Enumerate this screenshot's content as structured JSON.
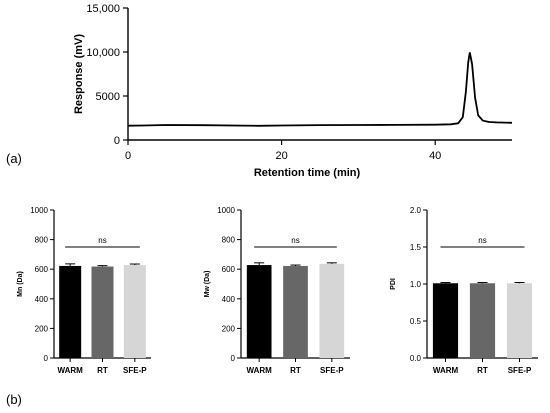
{
  "panels": {
    "a": "(a)",
    "b": "(b)"
  },
  "chart_data": [
    {
      "type": "line",
      "xlabel": "Retention time (min)",
      "ylabel": "Response (mV)",
      "xlim": [
        0,
        50
      ],
      "ylim": [
        0,
        15000
      ],
      "xticks": [
        "0",
        "20",
        "40"
      ],
      "yticks": [
        "0",
        "5000",
        "10,000",
        "15,000"
      ],
      "series": [
        {
          "x": [
            0,
            2,
            5,
            10,
            15,
            17,
            20,
            25,
            30,
            35,
            40,
            42,
            43,
            43.6,
            44.0,
            44.3,
            44.5,
            44.8,
            45.2,
            45.6,
            46.2,
            47,
            48,
            50
          ],
          "y": [
            1620,
            1650,
            1700,
            1680,
            1640,
            1610,
            1650,
            1690,
            1700,
            1720,
            1740,
            1780,
            1900,
            2600,
            5500,
            8800,
            9950,
            8600,
            4800,
            2800,
            2200,
            2050,
            2000,
            1950
          ]
        }
      ],
      "grid": false
    },
    {
      "type": "bar",
      "ylabel": "Mn (Da)",
      "categories": [
        "WARM",
        "RT",
        "SFE-P"
      ],
      "values": [
        622,
        618,
        628
      ],
      "errors": [
        14,
        6,
        7
      ],
      "colors": [
        "#000000",
        "#676767",
        "#d6d6d6"
      ],
      "ylim": [
        0,
        1000
      ],
      "yticks": [
        "0",
        "200",
        "400",
        "600",
        "800",
        "1000"
      ],
      "annotation": "ns"
    },
    {
      "type": "bar",
      "ylabel": "Mw (Da)",
      "categories": [
        "WARM",
        "RT",
        "SFE-P"
      ],
      "values": [
        628,
        622,
        636
      ],
      "errors": [
        15,
        6,
        7
      ],
      "colors": [
        "#000000",
        "#676767",
        "#d6d6d6"
      ],
      "ylim": [
        0,
        1000
      ],
      "yticks": [
        "0",
        "200",
        "400",
        "600",
        "800",
        "1000"
      ],
      "annotation": "ns"
    },
    {
      "type": "bar",
      "ylabel": "PDI",
      "categories": [
        "WARM",
        "RT",
        "SFE-P"
      ],
      "values": [
        1.01,
        1.01,
        1.01
      ],
      "errors": [
        0.01,
        0.01,
        0.01
      ],
      "colors": [
        "#000000",
        "#676767",
        "#d6d6d6"
      ],
      "ylim": [
        0,
        2.0
      ],
      "yticks": [
        "0.0",
        "0.5",
        "1.0",
        "1.5",
        "2.0"
      ],
      "annotation": "ns"
    }
  ]
}
